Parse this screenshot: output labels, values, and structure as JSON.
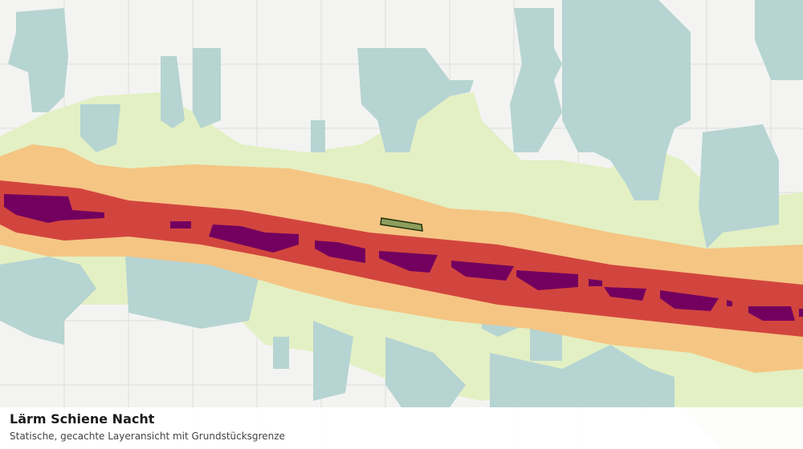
{
  "caption": {
    "title": "Lärm Schiene Nacht",
    "subtitle": "Statische, gecachte Layeransicht mit Grundstücksgrenze"
  }
}
